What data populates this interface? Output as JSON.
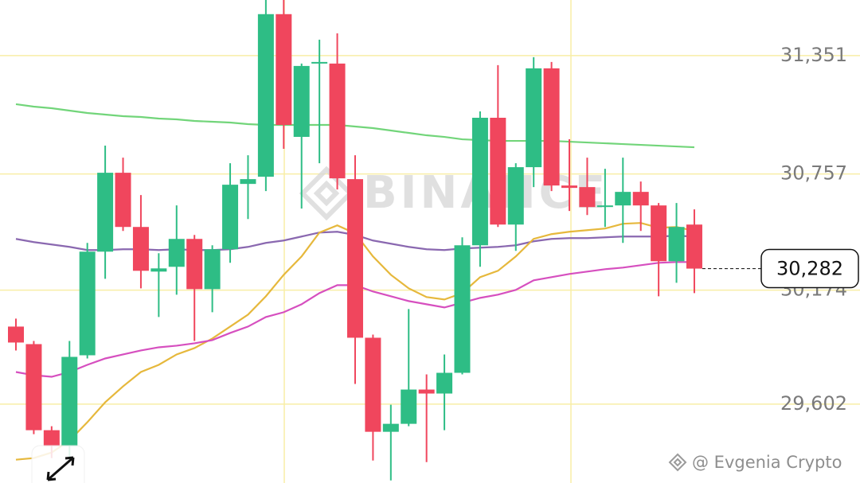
{
  "chart_data": {
    "type": "candlestick",
    "watermark": "BINANCE",
    "credit": "@ Evgenia Crypto",
    "categories": [
      null,
      null,
      null,
      null,
      null,
      null,
      null,
      null,
      null,
      null,
      null,
      null,
      null,
      null,
      null,
      null,
      null,
      null,
      null,
      null,
      null,
      null,
      null,
      null,
      null,
      null,
      null,
      null,
      null,
      null,
      null,
      null,
      null,
      null,
      null,
      null,
      null,
      null,
      null
    ],
    "open": [
      29991,
      29903,
      29471,
      29391,
      29847,
      30367,
      30763,
      30491,
      30267,
      30291,
      30431,
      30179,
      30379,
      30707,
      30743,
      31559,
      30943,
      31311,
      31311,
      30731,
      29935,
      29463,
      29503,
      29675,
      29655,
      29759,
      30399,
      31039,
      30503,
      30791,
      31287,
      30699,
      30691,
      30591,
      30599,
      30667,
      30599,
      30319,
      30503
    ],
    "high": [
      30031,
      29919,
      29491,
      29919,
      30411,
      30899,
      30839,
      30651,
      30359,
      30599,
      30451,
      30399,
      30811,
      30851,
      31651,
      31651,
      31311,
      31431,
      31463,
      30851,
      29951,
      29599,
      30079,
      29751,
      29851,
      30439,
      31071,
      31303,
      30811,
      31343,
      31319,
      30931,
      30839,
      30783,
      30839,
      30719,
      30611,
      30611,
      30579
    ],
    "low": [
      29871,
      29451,
      29331,
      29331,
      29831,
      30231,
      30471,
      30183,
      30039,
      30151,
      29919,
      30063,
      30311,
      30531,
      30671,
      30883,
      30583,
      30811,
      30679,
      29703,
      29319,
      29219,
      29491,
      29311,
      29471,
      29751,
      30291,
      30491,
      30371,
      30691,
      30671,
      30571,
      30551,
      30491,
      30411,
      30471,
      30143,
      30211,
      30159
    ],
    "close": [
      29911,
      29471,
      29391,
      29839,
      30367,
      30763,
      30491,
      30271,
      30283,
      30431,
      30179,
      30379,
      30703,
      30731,
      31559,
      31003,
      31299,
      31319,
      30735,
      29935,
      29463,
      29503,
      29675,
      29655,
      29759,
      30399,
      31039,
      30503,
      30791,
      31287,
      30699,
      30687,
      30591,
      30599,
      30667,
      30599,
      30319,
      30491,
      30282
    ],
    "up_color": "#2ebd85",
    "down_color": "#f0465d",
    "lines": [
      {
        "color": "#72d57a",
        "values": [
          31107,
          31095,
          31087,
          31075,
          31063,
          31055,
          31047,
          31043,
          31035,
          31031,
          31023,
          31019,
          31015,
          31007,
          31003,
          31003,
          31003,
          31003,
          31003,
          30995,
          30987,
          30975,
          30963,
          30951,
          30943,
          30931,
          30927,
          30923,
          30923,
          30923,
          30923,
          30919,
          30915,
          30911,
          30907,
          30903,
          30899,
          30895,
          30891
        ]
      },
      {
        "color": "#8a68b0",
        "values": [
          30431,
          30415,
          30403,
          30391,
          30375,
          30375,
          30379,
          30379,
          30375,
          30379,
          30375,
          30375,
          30379,
          30391,
          30411,
          30423,
          30443,
          30463,
          30467,
          30451,
          30423,
          30407,
          30391,
          30379,
          30375,
          30383,
          30387,
          30391,
          30399,
          30419,
          30431,
          30435,
          30435,
          30439,
          30443,
          30443,
          30443,
          30447,
          30443
        ]
      },
      {
        "color": "#e6b83c",
        "values": [
          29323,
          29331,
          29359,
          29419,
          29511,
          29611,
          29691,
          29763,
          29799,
          29851,
          29883,
          29931,
          29991,
          30051,
          30143,
          30251,
          30343,
          30463,
          30499,
          30459,
          30343,
          30251,
          30183,
          30139,
          30127,
          30159,
          30239,
          30271,
          30343,
          30431,
          30455,
          30467,
          30475,
          30483,
          30507,
          30511,
          30487,
          30491,
          30471
        ]
      },
      {
        "color": "#d64fbf",
        "values": [
          29763,
          29747,
          29739,
          29763,
          29799,
          29831,
          29851,
          29871,
          29887,
          29895,
          29907,
          29923,
          29959,
          29991,
          30039,
          30063,
          30103,
          30159,
          30199,
          30199,
          30167,
          30143,
          30119,
          30103,
          30087,
          30111,
          30135,
          30151,
          30175,
          30223,
          30239,
          30255,
          30267,
          30279,
          30287,
          30299,
          30311,
          30315,
          30315
        ]
      }
    ],
    "ylim": [
      29206,
      31630
    ],
    "yticks": [
      {
        "value": 29602,
        "label": "29,602"
      },
      {
        "value": 30174,
        "label": "30,174"
      },
      {
        "value": 30757,
        "label": "30,757"
      },
      {
        "value": 31351,
        "label": "31,351"
      }
    ],
    "grid": true,
    "last_price": {
      "value": 30282,
      "label": "30,282"
    }
  }
}
